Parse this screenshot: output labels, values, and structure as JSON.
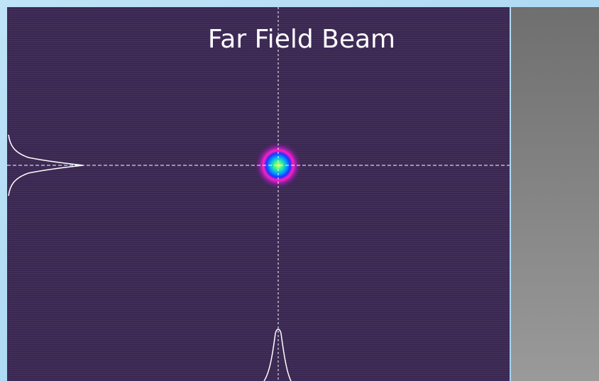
{
  "title": "Far Field Beam"
}
